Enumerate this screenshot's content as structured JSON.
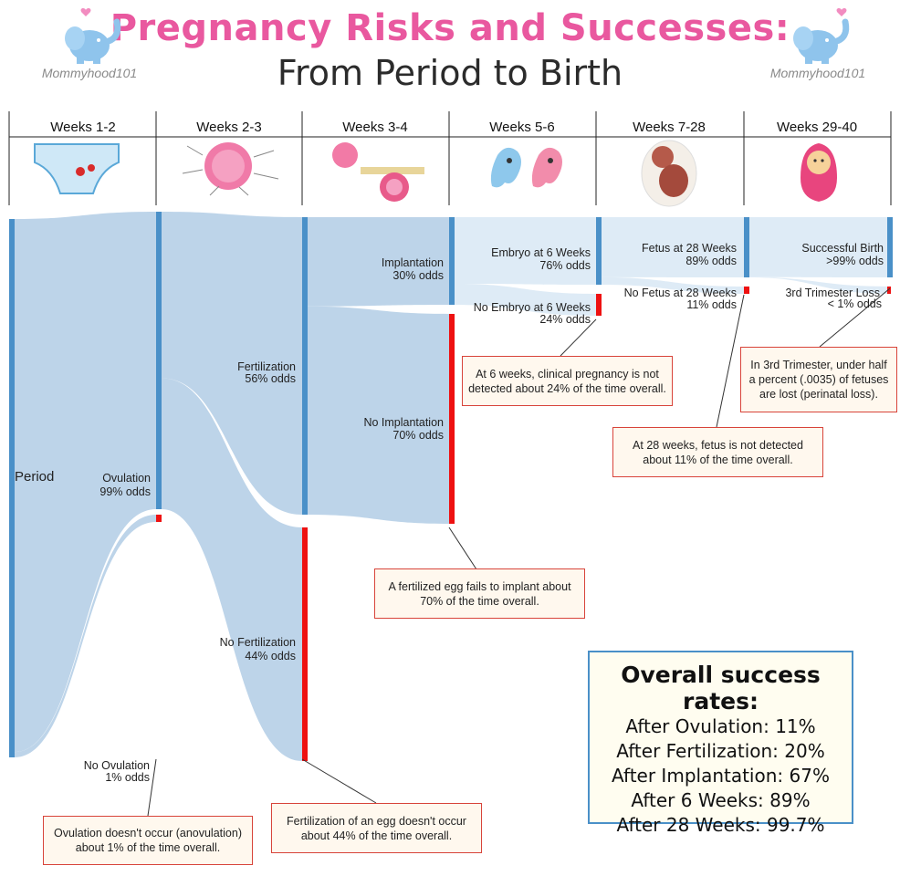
{
  "header": {
    "title_line1": "Pregnancy Risks and Successes:",
    "title_line2": "From Period to Birth",
    "logo_text": "Mommyhood101"
  },
  "weeks": [
    "Weeks 1-2",
    "Weeks 2-3",
    "Weeks 3-4",
    "Weeks 5-6",
    "Weeks 7-28",
    "Weeks 29-40"
  ],
  "stage_icons": [
    "underwear-icon",
    "egg-sperm-icon",
    "implantation-icon",
    "embryo-icon",
    "fetus-icon",
    "baby-icon"
  ],
  "chart_data": {
    "type": "sankey",
    "title": "Pregnancy Risks and Successes: From Period to Birth",
    "nodes": {
      "period": "Period",
      "ovulation": {
        "label": "Ovulation",
        "odds": "99% odds"
      },
      "no_ovulation": {
        "label": "No Ovulation",
        "odds": "1% odds"
      },
      "fertilization": {
        "label": "Fertilization",
        "odds": "56% odds"
      },
      "no_fertilization": {
        "label": "No Fertilization",
        "odds": "44% odds"
      },
      "implantation": {
        "label": "Implantation",
        "odds": "30% odds"
      },
      "no_implantation": {
        "label": "No Implantation",
        "odds": "70% odds"
      },
      "embryo": {
        "label": "Embryo at 6 Weeks",
        "odds": "76% odds"
      },
      "no_embryo": {
        "label": "No Embryo at 6 Weeks",
        "odds": "24% odds"
      },
      "fetus": {
        "label": "Fetus at 28 Weeks",
        "odds": "89% odds"
      },
      "no_fetus": {
        "label": "No Fetus at 28 Weeks",
        "odds": "11% odds"
      },
      "birth": {
        "label": "Successful Birth",
        "odds": ">99% odds"
      },
      "loss": {
        "label": "3rd Trimester Loss",
        "odds": "< 1% odds"
      }
    },
    "flows": [
      {
        "from": "period",
        "to": "ovulation",
        "value": 99
      },
      {
        "from": "period",
        "to": "no_ovulation",
        "value": 1
      },
      {
        "from": "ovulation",
        "to": "fertilization",
        "value": 56
      },
      {
        "from": "ovulation",
        "to": "no_fertilization",
        "value": 44
      },
      {
        "from": "fertilization",
        "to": "implantation",
        "value": 30
      },
      {
        "from": "fertilization",
        "to": "no_implantation",
        "value": 70
      },
      {
        "from": "implantation",
        "to": "embryo",
        "value": 76
      },
      {
        "from": "implantation",
        "to": "no_embryo",
        "value": 24
      },
      {
        "from": "embryo",
        "to": "fetus",
        "value": 89
      },
      {
        "from": "embryo",
        "to": "no_fetus",
        "value": 11
      },
      {
        "from": "fetus",
        "to": "birth",
        "value": 99.65
      },
      {
        "from": "fetus",
        "to": "loss",
        "value": 0.35
      }
    ],
    "colors": {
      "success": "#4a90c8",
      "failure": "#ee1111",
      "flow": "#b9d2e8",
      "flow_light": "#dceaf6"
    }
  },
  "notes": {
    "no_ovulation": "Ovulation doesn't occur (anovulation) about 1% of the time overall.",
    "no_fertilization": "Fertilization of an egg doesn't occur about 44% of the time overall.",
    "no_implantation": "A fertilized egg fails to implant about 70% of the time overall.",
    "no_embryo": "At 6 weeks, clinical pregnancy is not detected about 24% of the time overall.",
    "no_fetus": "At 28 weeks, fetus is not detected about 11% of the time overall.",
    "loss": "In 3rd Trimester, under half a percent (.0035) of fetuses are lost (perinatal loss)."
  },
  "summary": {
    "heading": "Overall success rates:",
    "lines": [
      "After Ovulation: 11%",
      "After Fertilization: 20%",
      "After Implantation: 67%",
      "After 6 Weeks: 89%",
      "After 28 Weeks: 99.7%"
    ]
  }
}
